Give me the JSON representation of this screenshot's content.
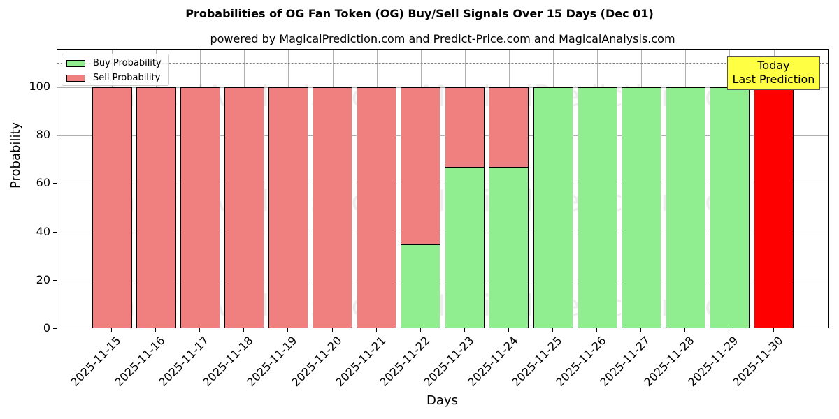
{
  "title": "Probabilities of OG Fan Token (OG) Buy/Sell Signals Over 15 Days (Dec 01)",
  "subtitle": "powered by MagicalPrediction.com and Predict-Price.com and MagicalAnalysis.com",
  "legend": {
    "buy_label": "Buy Probability",
    "sell_label": "Sell Probability"
  },
  "annotation": {
    "line1": "Today",
    "line2": "Last Prediction"
  },
  "axes": {
    "xlabel": "Days",
    "ylabel": "Probability",
    "yticks": [
      "0",
      "20",
      "40",
      "60",
      "80",
      "100"
    ]
  },
  "watermarks": [
    "MagicalAnalysis.com",
    "MagicalPrediction.com"
  ],
  "colors": {
    "buy": "#90ee90",
    "sell": "#f08080",
    "today": "#ff0000",
    "annotation_bg": "#ffff44"
  },
  "chart_data": {
    "type": "bar",
    "stacked": true,
    "title": "Probabilities of OG Fan Token (OG) Buy/Sell Signals Over 15 Days (Dec 01)",
    "subtitle": "powered by MagicalPrediction.com and Predict-Price.com and MagicalAnalysis.com",
    "xlabel": "Days",
    "ylabel": "Probability",
    "ylim": [
      0,
      115
    ],
    "yticks": [
      0,
      20,
      40,
      60,
      80,
      100
    ],
    "grid": true,
    "legend_position": "upper left",
    "reference_line": {
      "y": 110,
      "style": "dashed",
      "color": "#808080"
    },
    "categories": [
      "2025-11-15",
      "2025-11-16",
      "2025-11-17",
      "2025-11-18",
      "2025-11-19",
      "2025-11-20",
      "2025-11-21",
      "2025-11-22",
      "2025-11-23",
      "2025-11-24",
      "2025-11-25",
      "2025-11-26",
      "2025-11-27",
      "2025-11-28",
      "2025-11-29",
      "2025-11-30"
    ],
    "series": [
      {
        "name": "Buy Probability",
        "color": "#90ee90",
        "values": [
          0,
          0,
          0,
          0,
          0,
          0,
          0,
          35,
          67,
          67,
          100,
          100,
          100,
          100,
          100,
          0
        ]
      },
      {
        "name": "Sell Probability",
        "color": "#f08080",
        "values": [
          100,
          100,
          100,
          100,
          100,
          100,
          100,
          65,
          33,
          33,
          0,
          0,
          0,
          0,
          0,
          100
        ]
      }
    ],
    "highlight": {
      "category": "2025-11-30",
      "color": "#ff0000",
      "annotation": "Today\nLast Prediction"
    }
  }
}
